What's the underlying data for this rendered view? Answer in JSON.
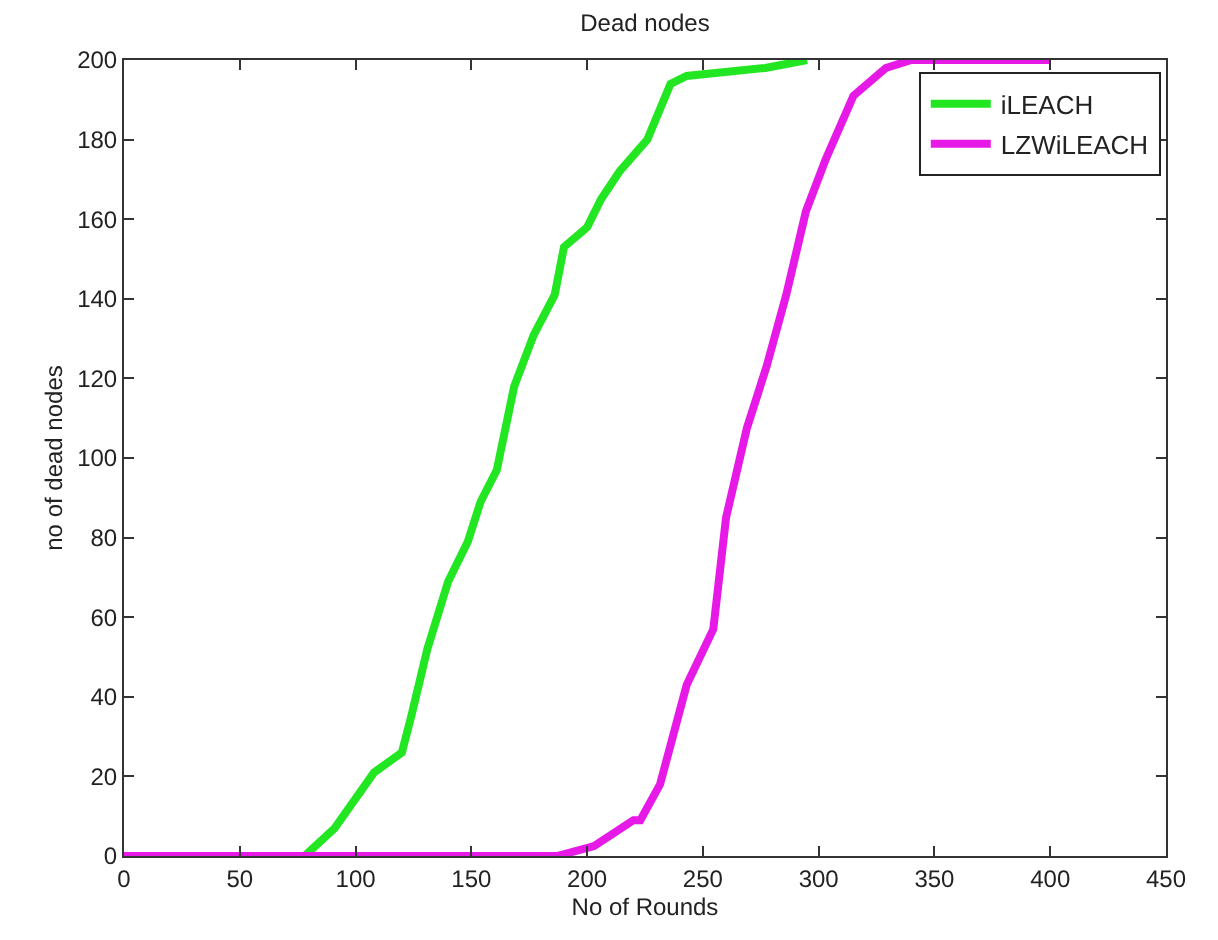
{
  "chart_data": {
    "type": "line",
    "title": "Dead nodes",
    "xlabel": "No of Rounds",
    "ylabel": "no of dead nodes",
    "xlim": [
      0,
      450
    ],
    "xticks": [
      0,
      50,
      100,
      150,
      200,
      250,
      300,
      350,
      400,
      450
    ],
    "ylim": [
      0,
      200
    ],
    "yticks": [
      0,
      20,
      40,
      60,
      80,
      100,
      120,
      140,
      160,
      180,
      200
    ],
    "legend": "top right",
    "marker": "none",
    "line_style": "solid",
    "series": [
      {
        "name": "iLEACH",
        "color": "#22e622",
        "x": [
          0,
          78,
          91,
          108,
          120,
          124,
          131,
          140,
          148.5,
          154,
          161,
          168.5,
          177,
          186,
          190,
          200,
          206,
          214,
          226,
          236,
          243,
          277,
          295
        ],
        "values": [
          0,
          0,
          7,
          21,
          26,
          35,
          52,
          69,
          79,
          89,
          97,
          118,
          131,
          141,
          153,
          158,
          165,
          172,
          180,
          194,
          196,
          198,
          200
        ]
      },
      {
        "name": "LZWiLEACH",
        "color": "#e619e6",
        "x": [
          0,
          187,
          203,
          220,
          223,
          231.5,
          243,
          254.5,
          260,
          269,
          277.5,
          286,
          294.5,
          303,
          315,
          329,
          340,
          400
        ],
        "values": [
          0,
          0,
          2.5,
          9,
          9,
          18,
          43,
          57,
          85,
          107.5,
          123,
          141,
          162,
          175,
          191,
          198,
          200,
          200
        ]
      }
    ]
  }
}
